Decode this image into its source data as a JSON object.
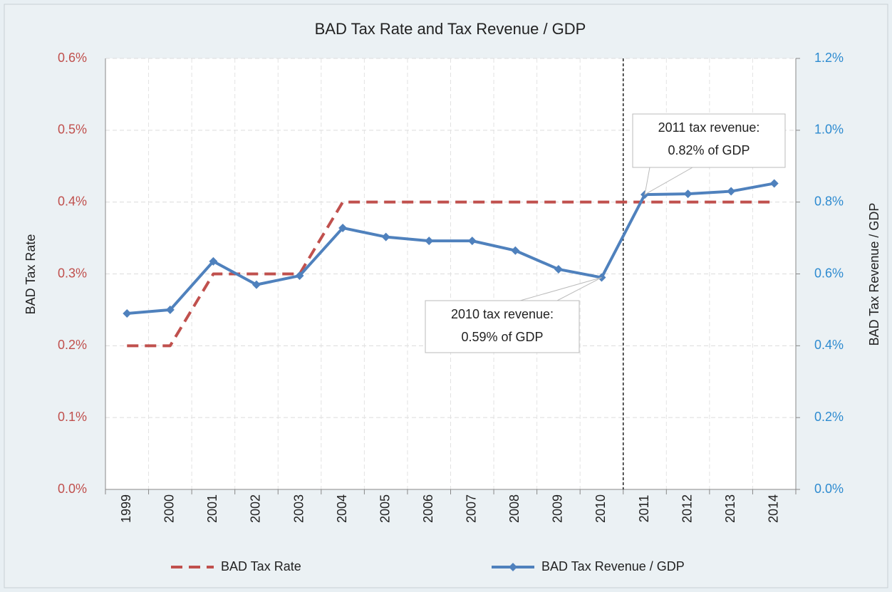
{
  "chart_data": {
    "type": "line",
    "title": "BAD Tax Rate and Tax Revenue / GDP",
    "categories": [
      "1999",
      "2000",
      "2001",
      "2002",
      "2003",
      "2004",
      "2005",
      "2006",
      "2007",
      "2008",
      "2009",
      "2010",
      "2011",
      "2012",
      "2013",
      "2014"
    ],
    "series": [
      {
        "name": "BAD Tax Rate",
        "color": "#c0504d",
        "dashed": true,
        "values": [
          0.2,
          0.2,
          0.3,
          0.3,
          0.3,
          0.4,
          0.4,
          0.4,
          0.4,
          0.4,
          0.4,
          0.4,
          0.4,
          0.4,
          0.4,
          0.4
        ]
      },
      {
        "name": "BAD Tax Revenue / GDP",
        "color": "#4f81bd",
        "axis": "y2",
        "marker": "diamond",
        "values": [
          0.49,
          0.5,
          0.635,
          0.57,
          0.595,
          0.728,
          0.703,
          0.692,
          0.692,
          0.665,
          0.613,
          0.59,
          0.821,
          0.823,
          0.83,
          0.852
        ]
      }
    ],
    "ylabel": "BAD Tax Rate",
    "y2label": "BAD Tax Revenue / GDP",
    "ylim": [
      0,
      0.6
    ],
    "yticks": [
      {
        "value": 0,
        "label": "0.0%"
      },
      {
        "value": 0.1,
        "label": "0.1%"
      },
      {
        "value": 0.2,
        "label": "0.2%"
      },
      {
        "value": 0.3,
        "label": "0.3%"
      },
      {
        "value": 0.4,
        "label": "0.4%"
      },
      {
        "value": 0.5,
        "label": "0.5%"
      },
      {
        "value": 0.6,
        "label": "0.6%"
      }
    ],
    "y2lim": [
      0,
      1.2
    ],
    "y2ticks": [
      {
        "value": 0,
        "label": "0.0%"
      },
      {
        "value": 0.2,
        "label": "0.2%"
      },
      {
        "value": 0.4,
        "label": "0.4%"
      },
      {
        "value": 0.6,
        "label": "0.6%"
      },
      {
        "value": 0.8,
        "label": "0.8%"
      },
      {
        "value": 1.0,
        "label": "1.0%"
      },
      {
        "value": 1.2,
        "label": "1.2%"
      }
    ],
    "grid": true,
    "legend": "bottom",
    "annotations": [
      {
        "lines": [
          "2010 tax revenue:",
          "0.59% of GDP"
        ]
      },
      {
        "lines": [
          "2011 tax revenue:",
          "0.82% of GDP"
        ]
      }
    ]
  }
}
